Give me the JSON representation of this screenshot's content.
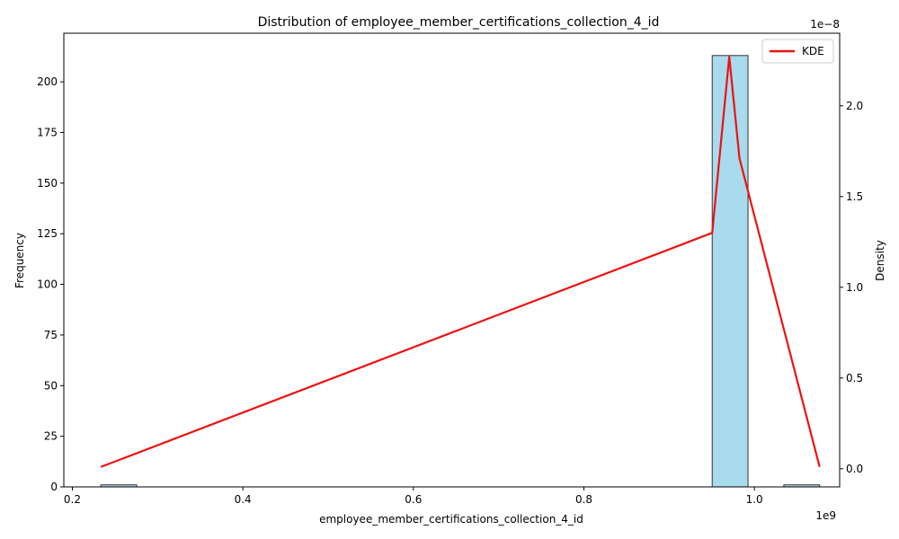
{
  "chart_data": {
    "type": "bar",
    "title": "Distribution of employee_member_certifications_collection_4_id",
    "xlabel": "employee_member_certifications_collection_4_id",
    "ylabel": "Frequency",
    "y2label": "Density",
    "x_offset_text": "1e9",
    "y2_offset_text": "1e−8",
    "xlim": [
      0.19,
      1.1
    ],
    "ylim": [
      0,
      224
    ],
    "y2lim": [
      -0.1,
      2.4
    ],
    "x_ticks": [
      0.2,
      0.4,
      0.6,
      0.8,
      1.0
    ],
    "x_tick_labels": [
      "0.2",
      "0.4",
      "0.6",
      "0.8",
      "1.0"
    ],
    "y_ticks": [
      0,
      25,
      50,
      75,
      100,
      125,
      150,
      175,
      200
    ],
    "y_tick_labels": [
      "0",
      "25",
      "50",
      "75",
      "100",
      "125",
      "150",
      "175",
      "200"
    ],
    "y2_ticks": [
      0.0,
      0.5,
      1.0,
      1.5,
      2.0
    ],
    "y2_tick_labels": [
      "0.0",
      "0.5",
      "1.0",
      "1.5",
      "2.0"
    ],
    "grid": false,
    "legend_position": "top-right",
    "bars": [
      {
        "x0": 0.2335,
        "x1": 0.2755,
        "count": 1
      },
      {
        "x0": 0.9505,
        "x1": 0.9925,
        "count": 213
      },
      {
        "x0": 1.0345,
        "x1": 1.0765,
        "count": 1
      }
    ],
    "kde": {
      "name": "KDE",
      "x": [
        0.2335,
        0.9505,
        0.9705,
        0.9825,
        1.0765
      ],
      "y": [
        0.01,
        1.3,
        2.27,
        1.71,
        0.01
      ]
    },
    "colors": {
      "bar_fill": "#a8dbee",
      "bar_edge": "#333333",
      "kde_line": "#ee1111"
    }
  }
}
